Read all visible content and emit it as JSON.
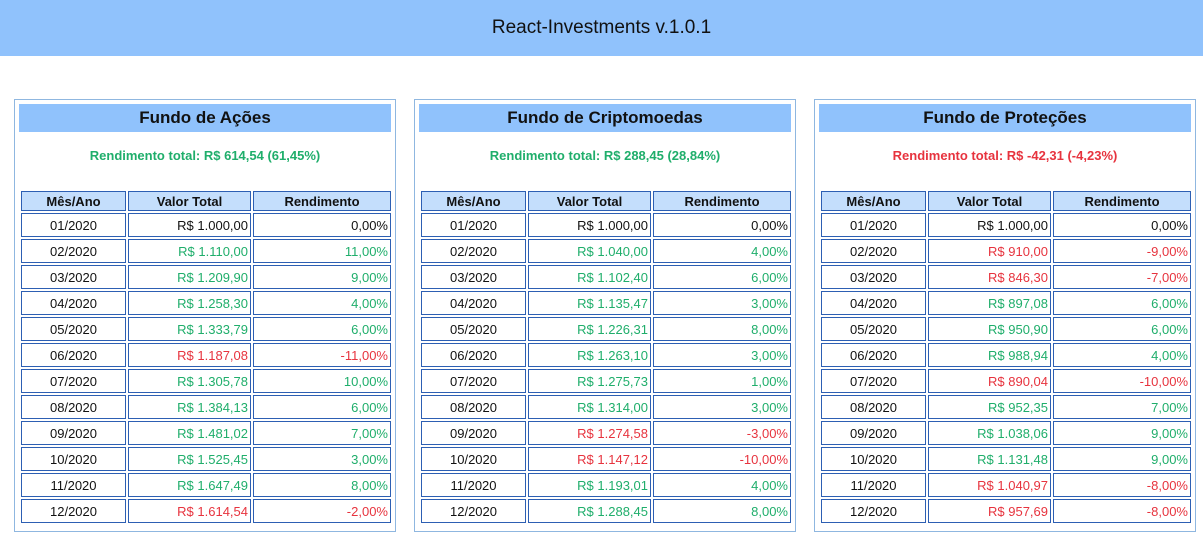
{
  "app": {
    "title": "React-Investments v.1.0.1"
  },
  "colors": {
    "header": "#90c2fc",
    "positive": "#1fae6b",
    "negative": "#e7333e",
    "table_border": "#2d5fb3",
    "th_bg": "#c4defc"
  },
  "columns": [
    "Mês/Ano",
    "Valor Total",
    "Rendimento"
  ],
  "funds": [
    {
      "name": "Fundo de Ações",
      "summary": "Rendimento total: R$ 614,54 (61,45%)",
      "trend": "pos",
      "rows": [
        {
          "month": "01/2020",
          "value": "R$ 1.000,00",
          "yield": "0,00%",
          "trend": "neutral"
        },
        {
          "month": "02/2020",
          "value": "R$ 1.110,00",
          "yield": "11,00%",
          "trend": "pos"
        },
        {
          "month": "03/2020",
          "value": "R$ 1.209,90",
          "yield": "9,00%",
          "trend": "pos"
        },
        {
          "month": "04/2020",
          "value": "R$ 1.258,30",
          "yield": "4,00%",
          "trend": "pos"
        },
        {
          "month": "05/2020",
          "value": "R$ 1.333,79",
          "yield": "6,00%",
          "trend": "pos"
        },
        {
          "month": "06/2020",
          "value": "R$ 1.187,08",
          "yield": "-11,00%",
          "trend": "neg"
        },
        {
          "month": "07/2020",
          "value": "R$ 1.305,78",
          "yield": "10,00%",
          "trend": "pos"
        },
        {
          "month": "08/2020",
          "value": "R$ 1.384,13",
          "yield": "6,00%",
          "trend": "pos"
        },
        {
          "month": "09/2020",
          "value": "R$ 1.481,02",
          "yield": "7,00%",
          "trend": "pos"
        },
        {
          "month": "10/2020",
          "value": "R$ 1.525,45",
          "yield": "3,00%",
          "trend": "pos"
        },
        {
          "month": "11/2020",
          "value": "R$ 1.647,49",
          "yield": "8,00%",
          "trend": "pos"
        },
        {
          "month": "12/2020",
          "value": "R$ 1.614,54",
          "yield": "-2,00%",
          "trend": "neg"
        }
      ]
    },
    {
      "name": "Fundo de Criptomoedas",
      "summary": "Rendimento total: R$ 288,45 (28,84%)",
      "trend": "pos",
      "rows": [
        {
          "month": "01/2020",
          "value": "R$ 1.000,00",
          "yield": "0,00%",
          "trend": "neutral"
        },
        {
          "month": "02/2020",
          "value": "R$ 1.040,00",
          "yield": "4,00%",
          "trend": "pos"
        },
        {
          "month": "03/2020",
          "value": "R$ 1.102,40",
          "yield": "6,00%",
          "trend": "pos"
        },
        {
          "month": "04/2020",
          "value": "R$ 1.135,47",
          "yield": "3,00%",
          "trend": "pos"
        },
        {
          "month": "05/2020",
          "value": "R$ 1.226,31",
          "yield": "8,00%",
          "trend": "pos"
        },
        {
          "month": "06/2020",
          "value": "R$ 1.263,10",
          "yield": "3,00%",
          "trend": "pos"
        },
        {
          "month": "07/2020",
          "value": "R$ 1.275,73",
          "yield": "1,00%",
          "trend": "pos"
        },
        {
          "month": "08/2020",
          "value": "R$ 1.314,00",
          "yield": "3,00%",
          "trend": "pos"
        },
        {
          "month": "09/2020",
          "value": "R$ 1.274,58",
          "yield": "-3,00%",
          "trend": "neg"
        },
        {
          "month": "10/2020",
          "value": "R$ 1.147,12",
          "yield": "-10,00%",
          "trend": "neg"
        },
        {
          "month": "11/2020",
          "value": "R$ 1.193,01",
          "yield": "4,00%",
          "trend": "pos"
        },
        {
          "month": "12/2020",
          "value": "R$ 1.288,45",
          "yield": "8,00%",
          "trend": "pos"
        }
      ]
    },
    {
      "name": "Fundo de Proteções",
      "summary": "Rendimento total: R$ -42,31 (-4,23%)",
      "trend": "neg",
      "rows": [
        {
          "month": "01/2020",
          "value": "R$ 1.000,00",
          "yield": "0,00%",
          "trend": "neutral"
        },
        {
          "month": "02/2020",
          "value": "R$ 910,00",
          "yield": "-9,00%",
          "trend": "neg"
        },
        {
          "month": "03/2020",
          "value": "R$ 846,30",
          "yield": "-7,00%",
          "trend": "neg"
        },
        {
          "month": "04/2020",
          "value": "R$ 897,08",
          "yield": "6,00%",
          "trend": "pos"
        },
        {
          "month": "05/2020",
          "value": "R$ 950,90",
          "yield": "6,00%",
          "trend": "pos"
        },
        {
          "month": "06/2020",
          "value": "R$ 988,94",
          "yield": "4,00%",
          "trend": "pos"
        },
        {
          "month": "07/2020",
          "value": "R$ 890,04",
          "yield": "-10,00%",
          "trend": "neg"
        },
        {
          "month": "08/2020",
          "value": "R$ 952,35",
          "yield": "7,00%",
          "trend": "pos"
        },
        {
          "month": "09/2020",
          "value": "R$ 1.038,06",
          "yield": "9,00%",
          "trend": "pos"
        },
        {
          "month": "10/2020",
          "value": "R$ 1.131,48",
          "yield": "9,00%",
          "trend": "pos"
        },
        {
          "month": "11/2020",
          "value": "R$ 1.040,97",
          "yield": "-8,00%",
          "trend": "neg"
        },
        {
          "month": "12/2020",
          "value": "R$ 957,69",
          "yield": "-8,00%",
          "trend": "neg"
        }
      ]
    }
  ]
}
